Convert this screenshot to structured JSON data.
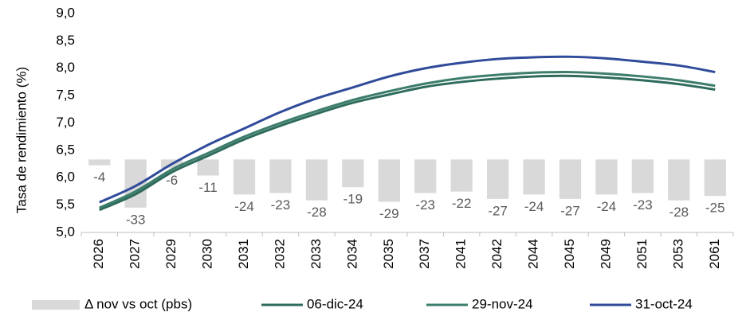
{
  "chart_data": {
    "type": "bar",
    "y_label": "Tasa de rendimiento (%)",
    "categories": [
      "2026",
      "2027",
      "2029",
      "2030",
      "2031",
      "2032",
      "2033",
      "2034",
      "2035",
      "2037",
      "2041",
      "2042",
      "2044",
      "2045",
      "2049",
      "2051",
      "2053",
      "2061"
    ],
    "ylim": [
      5.0,
      9.0
    ],
    "yticks": [
      {
        "value": 5.0,
        "label": "5,0"
      },
      {
        "value": 5.5,
        "label": "5,5"
      },
      {
        "value": 6.0,
        "label": "6,0"
      },
      {
        "value": 6.5,
        "label": "6,5"
      },
      {
        "value": 7.0,
        "label": "7,0"
      },
      {
        "value": 7.5,
        "label": "7,5"
      },
      {
        "value": 8.0,
        "label": "8,0"
      },
      {
        "value": 8.5,
        "label": "8,5"
      },
      {
        "value": 9.0,
        "label": "9,0"
      }
    ],
    "y2lim": [
      -50,
      100
    ],
    "grid": false,
    "legend": "bottom",
    "series": [
      {
        "name": "Δ nov vs oct (pbs)",
        "type": "bar",
        "axis": "y2",
        "color": "#d9d9d9",
        "values": [
          -4,
          -33,
          -6,
          -11,
          -24,
          -23,
          -28,
          -19,
          -29,
          -23,
          -22,
          -27,
          -24,
          -27,
          -24,
          -23,
          -28,
          -25
        ]
      },
      {
        "name": "06-dic-24",
        "type": "line",
        "color": "#2e6b5c",
        "values": [
          5.41,
          5.7,
          6.1,
          6.4,
          6.7,
          6.95,
          7.17,
          7.37,
          7.52,
          7.66,
          7.75,
          7.81,
          7.85,
          7.86,
          7.83,
          7.78,
          7.71,
          7.61
        ]
      },
      {
        "name": "29-nov-24",
        "type": "line",
        "color": "#3d7d6c",
        "values": [
          5.45,
          5.75,
          6.15,
          6.45,
          6.75,
          7.0,
          7.22,
          7.42,
          7.58,
          7.72,
          7.82,
          7.88,
          7.92,
          7.93,
          7.9,
          7.85,
          7.78,
          7.68
        ]
      },
      {
        "name": "31-oct-24",
        "type": "line",
        "color": "#2f4b9a",
        "values": [
          5.55,
          5.85,
          6.25,
          6.6,
          6.9,
          7.2,
          7.45,
          7.65,
          7.85,
          8.0,
          8.1,
          8.17,
          8.2,
          8.21,
          8.18,
          8.12,
          8.05,
          7.93
        ]
      }
    ]
  }
}
